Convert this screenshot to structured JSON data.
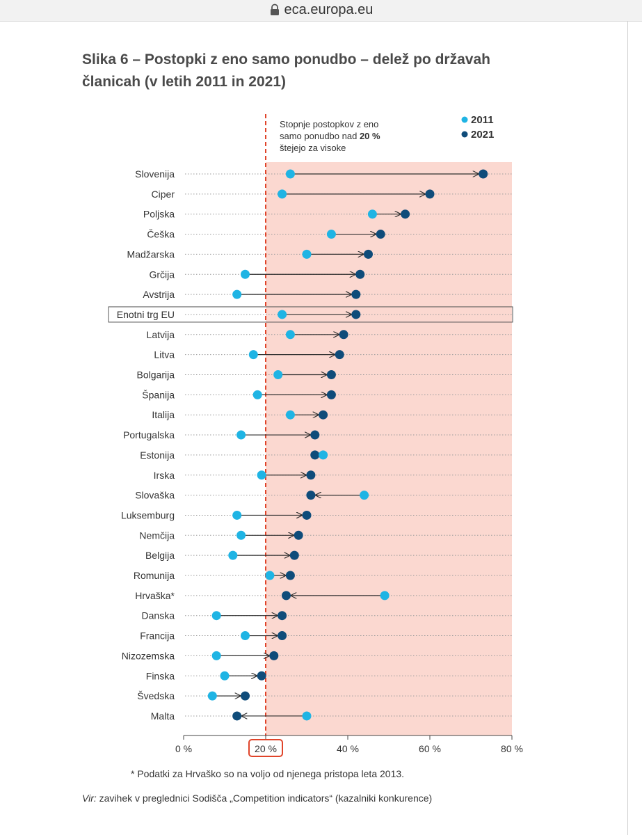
{
  "browser": {
    "url": "eca.europa.eu"
  },
  "figure": {
    "title": "Slika 6 – Postopki z eno samo ponudbo – delež po državah članicah (v letih 2011 in 2021)",
    "annotation_line1": "Stopnje postopkov z eno",
    "annotation_line2_prefix": "samo ponudbo nad ",
    "annotation_line2_bold": "20 %",
    "annotation_line3": "štejejo za visoke",
    "footnote": "* Podatki za Hrvaško so na voljo od njenega pristopa leta 2013.",
    "source_label": "Vir:",
    "source_text": " zavihek v preglednici Sodišča „Competition indicators“ (kazalniki konkurence)"
  },
  "chart_data": {
    "type": "dumbbell",
    "xlim": [
      0,
      80
    ],
    "threshold": 20,
    "x_ticks": [
      "0 %",
      "20 %",
      "40 %",
      "60 %",
      "80 %"
    ],
    "highlight_tick": "20 %",
    "highlight_category": "Enotni trg EU",
    "colors": {
      "2011": "#1fb4e4",
      "2021": "#0f4c7a",
      "threshold": "#e0442a",
      "high_zone": "#fbd8d0"
    },
    "series": [
      {
        "name": "2011",
        "values": [
          26,
          24,
          46,
          36,
          30,
          15,
          13,
          24,
          26,
          17,
          23,
          18,
          26,
          14,
          34,
          19,
          44,
          13,
          14,
          12,
          21,
          49,
          8,
          15,
          8,
          10,
          7,
          30
        ]
      },
      {
        "name": "2021",
        "values": [
          73,
          60,
          54,
          48,
          45,
          43,
          42,
          42,
          39,
          38,
          36,
          36,
          34,
          32,
          32,
          31,
          31,
          30,
          28,
          27,
          26,
          25,
          24,
          24,
          22,
          19,
          15,
          13
        ]
      }
    ],
    "categories": [
      "Slovenija",
      "Ciper",
      "Poljska",
      "Češka",
      "Madžarska",
      "Grčija",
      "Avstrija",
      "Enotni trg EU",
      "Latvija",
      "Litva",
      "Bolgarija",
      "Španija",
      "Italija",
      "Portugalska",
      "Estonija",
      "Irska",
      "Slovaška",
      "Luksemburg",
      "Nemčija",
      "Belgija",
      "Romunija",
      "Hrvaška*",
      "Danska",
      "Francija",
      "Nizozemska",
      "Finska",
      "Švedska",
      "Malta"
    ]
  }
}
